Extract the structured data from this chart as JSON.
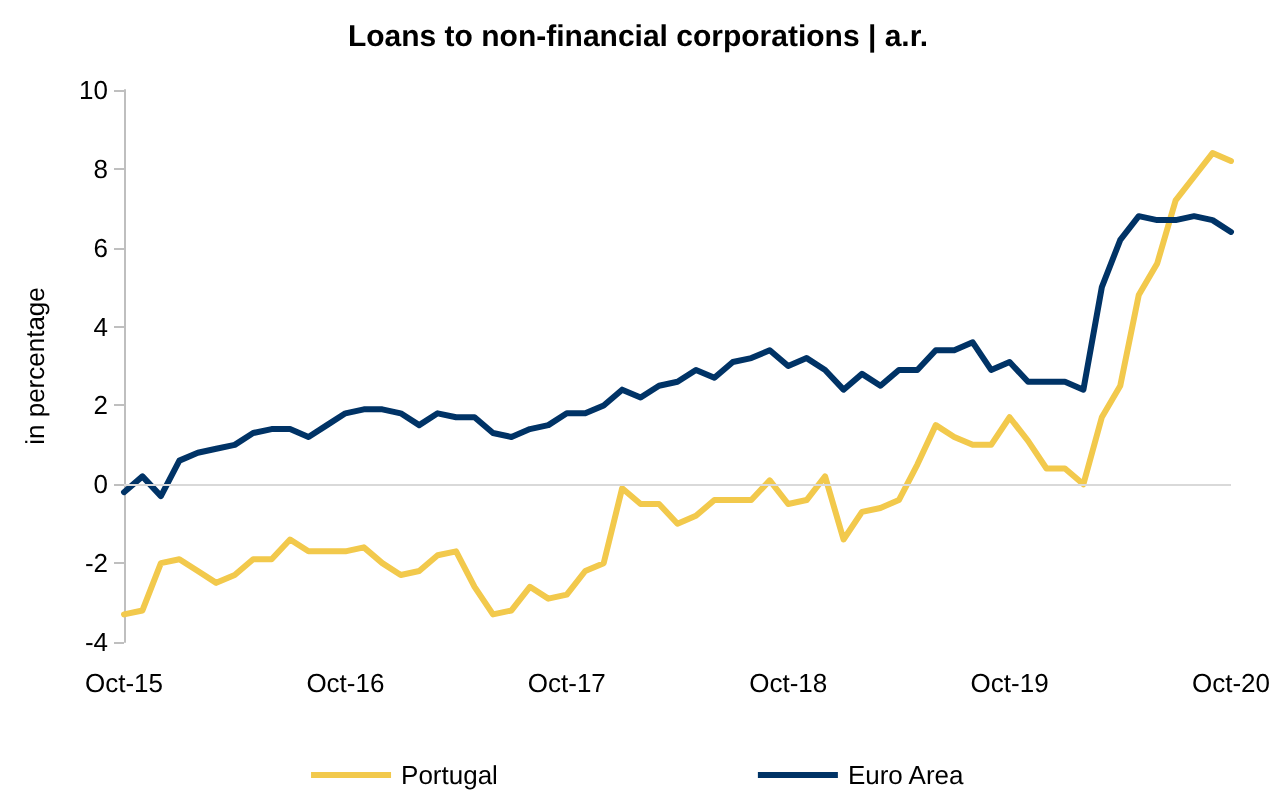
{
  "chart_data": {
    "type": "line",
    "title": "Loans to non-financial corporations | a.r.",
    "ylabel": "in percentage",
    "categories": [
      "Oct-15",
      null,
      null,
      null,
      null,
      null,
      null,
      null,
      null,
      null,
      null,
      null,
      "Oct-16",
      null,
      null,
      null,
      null,
      null,
      null,
      null,
      null,
      null,
      null,
      null,
      "Oct-17",
      null,
      null,
      null,
      null,
      null,
      null,
      null,
      null,
      null,
      null,
      null,
      "Oct-18",
      null,
      null,
      null,
      null,
      null,
      null,
      null,
      null,
      null,
      null,
      null,
      "Oct-19",
      null,
      null,
      null,
      null,
      null,
      null,
      null,
      null,
      null,
      null,
      null,
      "Oct-20"
    ],
    "series": [
      {
        "name": "Portugal",
        "color": "#f2c94c",
        "values": [
          -3.3,
          -3.2,
          -2.0,
          -1.9,
          -2.2,
          -2.5,
          -2.3,
          -1.9,
          -1.9,
          -1.4,
          -1.7,
          -1.7,
          -1.7,
          -1.6,
          -2.0,
          -2.3,
          -2.2,
          -1.8,
          -1.7,
          -2.6,
          -3.3,
          -3.2,
          -2.6,
          -2.9,
          -2.8,
          -2.2,
          -2.0,
          -0.1,
          -0.5,
          -0.5,
          -1.0,
          -0.8,
          -0.4,
          -0.4,
          -0.4,
          0.1,
          -0.5,
          -0.4,
          0.2,
          -1.4,
          -0.7,
          -0.6,
          -0.4,
          0.5,
          1.5,
          1.2,
          1.0,
          1.0,
          1.7,
          1.1,
          0.4,
          0.4,
          0.0,
          1.7,
          2.5,
          4.8,
          5.6,
          7.2,
          7.8,
          8.4,
          8.2
        ]
      },
      {
        "name": "Euro Area",
        "color": "#003366",
        "values": [
          -0.2,
          0.2,
          -0.3,
          0.6,
          0.8,
          0.9,
          1.0,
          1.3,
          1.4,
          1.4,
          1.2,
          1.5,
          1.8,
          1.9,
          1.9,
          1.8,
          1.5,
          1.8,
          1.7,
          1.7,
          1.3,
          1.2,
          1.4,
          1.5,
          1.8,
          1.8,
          2.0,
          2.4,
          2.2,
          2.5,
          2.6,
          2.9,
          2.7,
          3.1,
          3.2,
          3.4,
          3.0,
          3.2,
          2.9,
          2.4,
          2.8,
          2.5,
          2.9,
          2.9,
          3.4,
          3.4,
          3.6,
          2.9,
          3.1,
          2.6,
          2.6,
          2.6,
          2.4,
          5.0,
          6.2,
          6.8,
          6.7,
          6.7,
          6.8,
          6.7,
          6.4
        ]
      }
    ],
    "ylim": [
      -4,
      10
    ],
    "yticks": [
      -4,
      -2,
      0,
      2,
      4,
      6,
      8,
      10
    ],
    "ref_lines": [
      {
        "axis": "y",
        "value": 0,
        "color": "#d9d9d9"
      }
    ],
    "grid": false,
    "legend": "bottom",
    "marker": "none",
    "line_style": "solid"
  }
}
